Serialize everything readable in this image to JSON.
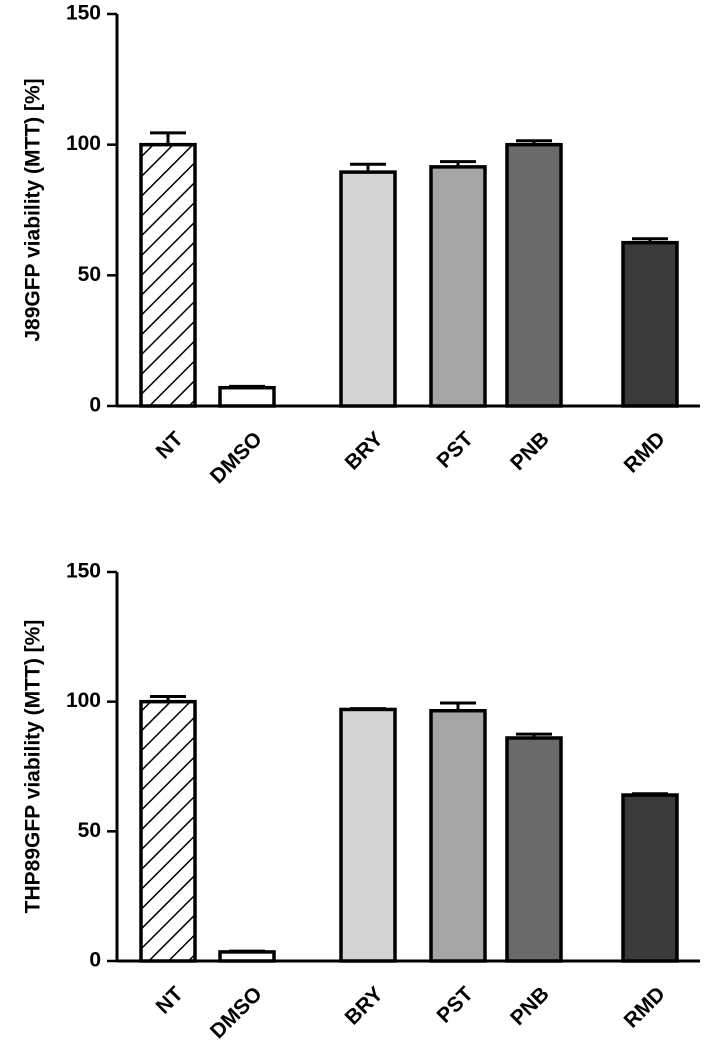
{
  "chart_data": [
    {
      "type": "bar",
      "categories": [
        "NT",
        "DMSO",
        "BRY",
        "PST",
        "PNB",
        "RMD"
      ],
      "values": [
        100,
        7,
        89.5,
        91.5,
        100,
        62.5
      ],
      "errors": [
        4.5,
        0.5,
        3,
        2,
        1.5,
        1.5
      ],
      "fills": [
        "hatch",
        "#ffffff",
        "#d4d4d4",
        "#a5a5a5",
        "#6a6a6a",
        "#3a3a3a"
      ],
      "ylabel": "J89GFP viability (MTT) [%]",
      "ylim": [
        0,
        150
      ],
      "yticks": [
        "0",
        "50",
        "100",
        "150"
      ],
      "grid": false
    },
    {
      "type": "bar",
      "categories": [
        "NT",
        "DMSO",
        "BRY",
        "PST",
        "PNB",
        "RMD"
      ],
      "values": [
        100,
        3.5,
        97,
        96.5,
        86,
        64
      ],
      "errors": [
        2,
        0.3,
        0.3,
        3,
        1.5,
        0.5
      ],
      "fills": [
        "hatch",
        "#ffffff",
        "#d4d4d4",
        "#a5a5a5",
        "#6a6a6a",
        "#3a3a3a"
      ],
      "ylabel": "THP89GFP viability (MTT) [%]",
      "ylim": [
        0,
        150
      ],
      "yticks": [
        "0",
        "50",
        "100",
        "150"
      ],
      "grid": false
    }
  ]
}
